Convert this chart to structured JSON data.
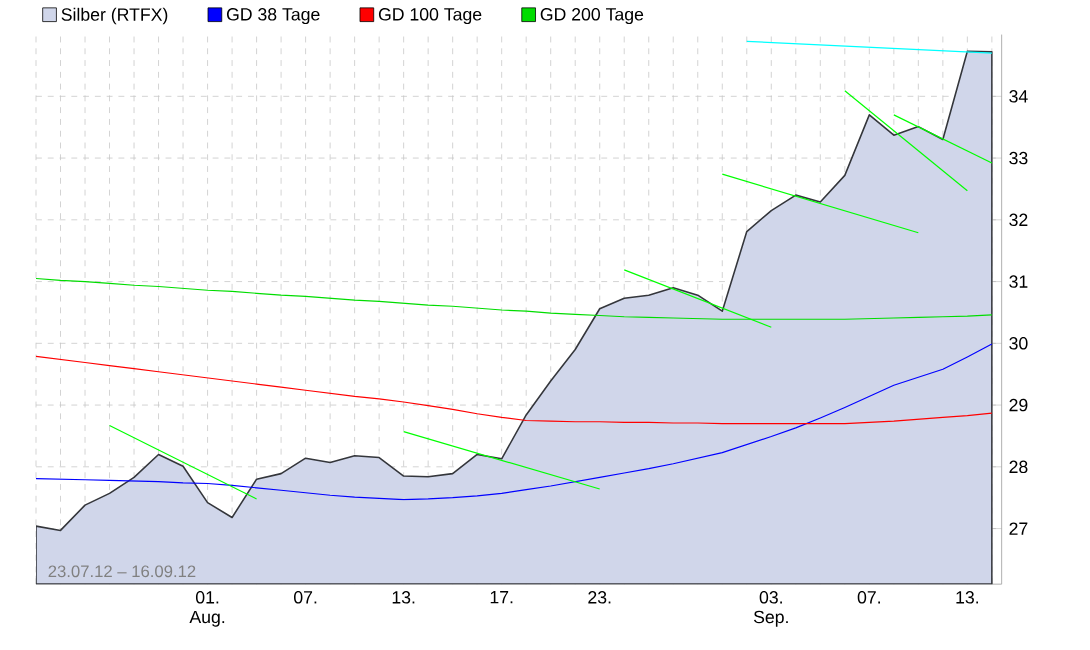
{
  "chart_data": {
    "type": "line",
    "categories": [
      null,
      null,
      null,
      null,
      null,
      null,
      null,
      "01. Aug.",
      null,
      null,
      null,
      "07.",
      null,
      null,
      null,
      "13.",
      null,
      null,
      null,
      "17.",
      null,
      null,
      null,
      "23.",
      null,
      null,
      null,
      null,
      null,
      null,
      "03. Sep.",
      null,
      null,
      null,
      "07.",
      null,
      null,
      null,
      "13.",
      null
    ],
    "ylim": [
      26.1,
      35.0
    ],
    "yticks": [
      27,
      28,
      29,
      30,
      31,
      32,
      33,
      34
    ],
    "grid": true,
    "legend": "top",
    "marker": "none",
    "line_style": "solid",
    "annotations": [
      "23.07.12 – 16.09.12"
    ],
    "series": [
      {
        "name": "Silber (RTFX)",
        "type": "area",
        "color": "#d0d6ea",
        "values": [
          27.04,
          26.97,
          27.38,
          27.57,
          27.83,
          28.2,
          28.01,
          27.42,
          27.18,
          27.8,
          27.89,
          28.14,
          28.07,
          28.18,
          28.15,
          27.85,
          27.84,
          27.89,
          28.2,
          28.13,
          28.84,
          29.39,
          29.9,
          30.56,
          30.73,
          30.78,
          30.9,
          30.78,
          30.52,
          31.81,
          32.15,
          32.4,
          32.29,
          32.72,
          33.7,
          33.37,
          33.51,
          33.3,
          34.73,
          34.72
        ]
      },
      {
        "name": "GD 38 Tage",
        "color": "#0000ff",
        "values": [
          27.81,
          27.8,
          27.79,
          27.78,
          27.77,
          27.76,
          27.74,
          27.73,
          27.7,
          27.66,
          27.62,
          27.58,
          27.54,
          27.51,
          27.49,
          27.47,
          27.48,
          27.5,
          27.53,
          27.57,
          27.63,
          27.69,
          27.76,
          27.83,
          27.9,
          27.97,
          28.05,
          28.14,
          28.23,
          28.36,
          28.49,
          28.63,
          28.79,
          28.96,
          29.14,
          29.32,
          29.45,
          29.58,
          29.78,
          29.99
        ]
      },
      {
        "name": "GD 100 Tage",
        "color": "#ff0000",
        "values": [
          29.79,
          29.74,
          29.69,
          29.64,
          29.59,
          29.54,
          29.49,
          29.44,
          29.39,
          29.34,
          29.29,
          29.24,
          29.19,
          29.14,
          29.1,
          29.05,
          28.99,
          28.93,
          28.86,
          28.8,
          28.75,
          28.74,
          28.73,
          28.73,
          28.72,
          28.72,
          28.71,
          28.71,
          28.7,
          28.7,
          28.7,
          28.7,
          28.7,
          28.7,
          28.72,
          28.74,
          28.77,
          28.8,
          28.83,
          28.87
        ]
      },
      {
        "name": "GD 200 Tage",
        "color": "#00dd00",
        "values": [
          31.05,
          31.02,
          31.0,
          30.97,
          30.94,
          30.92,
          30.89,
          30.86,
          30.84,
          30.81,
          30.78,
          30.76,
          30.73,
          30.7,
          30.68,
          30.65,
          30.62,
          30.6,
          30.57,
          30.54,
          30.52,
          30.49,
          30.47,
          30.45,
          30.43,
          30.42,
          30.41,
          30.4,
          30.39,
          30.39,
          30.39,
          30.39,
          30.39,
          30.39,
          30.4,
          30.41,
          30.42,
          30.43,
          30.44,
          30.46
        ]
      },
      {
        "color": "#00ff00",
        "values": [
          null,
          null,
          null,
          28.67,
          null,
          null,
          null,
          null,
          null,
          27.48,
          null,
          null,
          null,
          null,
          null,
          null,
          null,
          null,
          null,
          null,
          null,
          null,
          null,
          null,
          null,
          null,
          null,
          null,
          null,
          null,
          null,
          null,
          null,
          null,
          null,
          null,
          null,
          null,
          null,
          null
        ]
      },
      {
        "color": "#00ff00",
        "values": [
          null,
          null,
          null,
          null,
          null,
          null,
          null,
          null,
          null,
          null,
          null,
          null,
          null,
          null,
          null,
          28.57,
          null,
          null,
          null,
          null,
          null,
          null,
          null,
          27.64,
          null,
          null,
          null,
          null,
          null,
          null,
          null,
          null,
          null,
          null,
          null,
          null,
          null,
          null,
          null,
          null
        ]
      },
      {
        "color": "#00ff00",
        "values": [
          null,
          null,
          null,
          null,
          null,
          null,
          null,
          null,
          null,
          null,
          null,
          null,
          null,
          null,
          null,
          null,
          null,
          null,
          null,
          null,
          null,
          null,
          null,
          null,
          31.19,
          null,
          null,
          null,
          null,
          null,
          30.26,
          null,
          null,
          null,
          null,
          null,
          null,
          null,
          null,
          null
        ]
      },
      {
        "color": "#00ff00",
        "values": [
          null,
          null,
          null,
          null,
          null,
          null,
          null,
          null,
          null,
          null,
          null,
          null,
          null,
          null,
          null,
          null,
          null,
          null,
          null,
          null,
          null,
          null,
          null,
          null,
          null,
          null,
          null,
          null,
          32.74,
          null,
          null,
          null,
          null,
          null,
          null,
          null,
          31.79,
          null,
          null,
          null
        ]
      },
      {
        "color": "#00ff00",
        "values": [
          null,
          null,
          null,
          null,
          null,
          null,
          null,
          null,
          null,
          null,
          null,
          null,
          null,
          null,
          null,
          null,
          null,
          null,
          null,
          null,
          null,
          null,
          null,
          null,
          null,
          null,
          null,
          null,
          null,
          null,
          null,
          null,
          null,
          34.09,
          null,
          null,
          null,
          null,
          32.47,
          null
        ]
      },
      {
        "color": "#00ff00",
        "values": [
          null,
          null,
          null,
          null,
          null,
          null,
          null,
          null,
          null,
          null,
          null,
          null,
          null,
          null,
          null,
          null,
          null,
          null,
          null,
          null,
          null,
          null,
          null,
          null,
          null,
          null,
          null,
          null,
          null,
          null,
          null,
          null,
          null,
          null,
          null,
          33.7,
          null,
          null,
          null,
          32.92
        ]
      },
      {
        "color": "#00ffff",
        "values": [
          null,
          null,
          null,
          null,
          null,
          null,
          null,
          null,
          null,
          null,
          null,
          null,
          null,
          null,
          null,
          null,
          null,
          null,
          null,
          null,
          null,
          null,
          null,
          null,
          null,
          null,
          null,
          null,
          null,
          34.89,
          null,
          null,
          null,
          null,
          null,
          null,
          null,
          null,
          null,
          34.7
        ]
      }
    ]
  }
}
